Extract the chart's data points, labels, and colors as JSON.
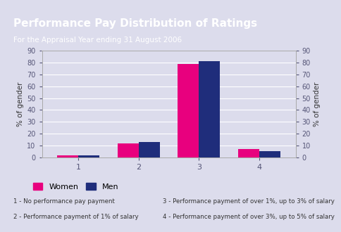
{
  "title": "Performance Pay Distribution of Ratings",
  "subtitle": "For the Appraisal Year ending 31 August 2006",
  "title_bg_color": "#5b3a8c",
  "plot_bg_color": "#dcdcec",
  "outer_bg_color": "#dcdcec",
  "categories": [
    1,
    2,
    3,
    4
  ],
  "women_values": [
    2,
    12,
    79,
    7
  ],
  "men_values": [
    2,
    13,
    81,
    5
  ],
  "women_color": "#e8007e",
  "men_color": "#1f2d7b",
  "ylabel": "% of gender",
  "ylim": [
    0,
    90
  ],
  "yticks": [
    0,
    10,
    20,
    30,
    40,
    50,
    60,
    70,
    80,
    90
  ],
  "legend_labels": [
    "Women",
    "Men"
  ],
  "footnotes": [
    "1 - No performance pay payment",
    "2 - Performance payment of 1% of salary",
    "3 - Performance payment of over 1%, up to 3% of salary",
    "4 - Performance payment of over 3%, up to 5% of salary"
  ],
  "bar_width": 0.35,
  "font_color": "#333333",
  "tick_color": "#555577"
}
